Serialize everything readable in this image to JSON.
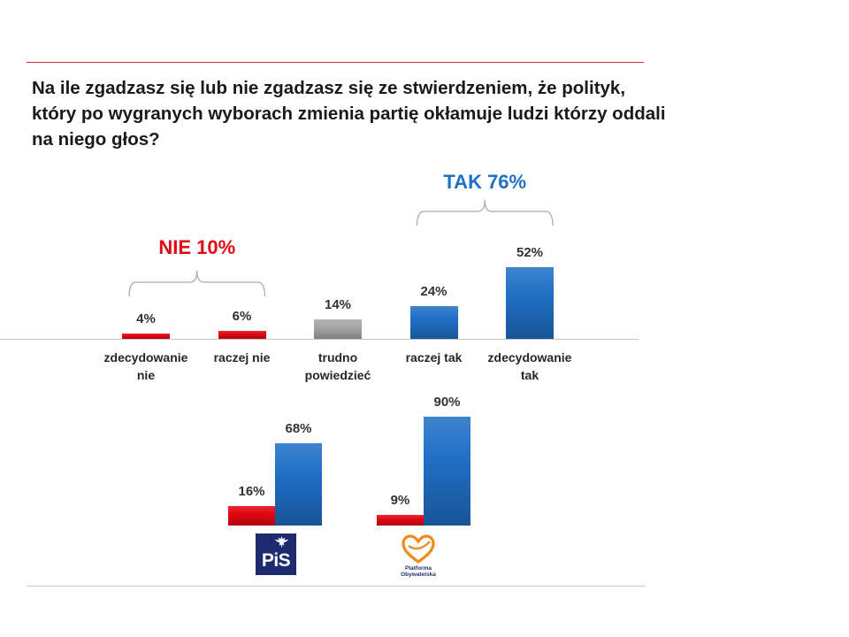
{
  "question_lines": [
    "Na ile zgadzasz się lub nie zgadzasz się ze stwierdzeniem, że polityk,",
    "który po wygranych wyborach zmienia partię okłamuje ludzi którzy oddali",
    "na niego głos?"
  ],
  "brand_colors": {
    "title_text": "#1a1a1a",
    "pis_navy": "#1d2a6e",
    "po_orange": "#f08a1e",
    "po_text": "#23336f"
  },
  "chart_data": [
    {
      "type": "bar",
      "categories": [
        "zdecydowanie nie",
        "raczej nie",
        "trudno powiedzieć",
        "raczej tak",
        "zdecydowanie tak"
      ],
      "values": [
        4,
        6,
        14,
        24,
        52
      ],
      "labels": [
        "4%",
        "6%",
        "14%",
        "24%",
        "52%"
      ],
      "colors": [
        "#e30613",
        "#e30613",
        "#a6a6a6",
        "#1f6fc5",
        "#1f6fc5"
      ],
      "annotations": [
        {
          "text": "NIE 10%",
          "color": "#e30613",
          "span": [
            0,
            1
          ]
        },
        {
          "text": "TAK 76%",
          "color": "#1f6fc5",
          "span": [
            3,
            4
          ]
        }
      ]
    },
    {
      "type": "bar",
      "categories": [
        "PiS",
        "Platforma Obywatelska"
      ],
      "series": [
        {
          "values": [
            16,
            9
          ],
          "labels": [
            "16%",
            "9%"
          ],
          "color": "#e30613"
        },
        {
          "values": [
            68,
            90
          ],
          "labels": [
            "68%",
            "90%"
          ],
          "color": "#1f6fc5"
        }
      ]
    }
  ]
}
